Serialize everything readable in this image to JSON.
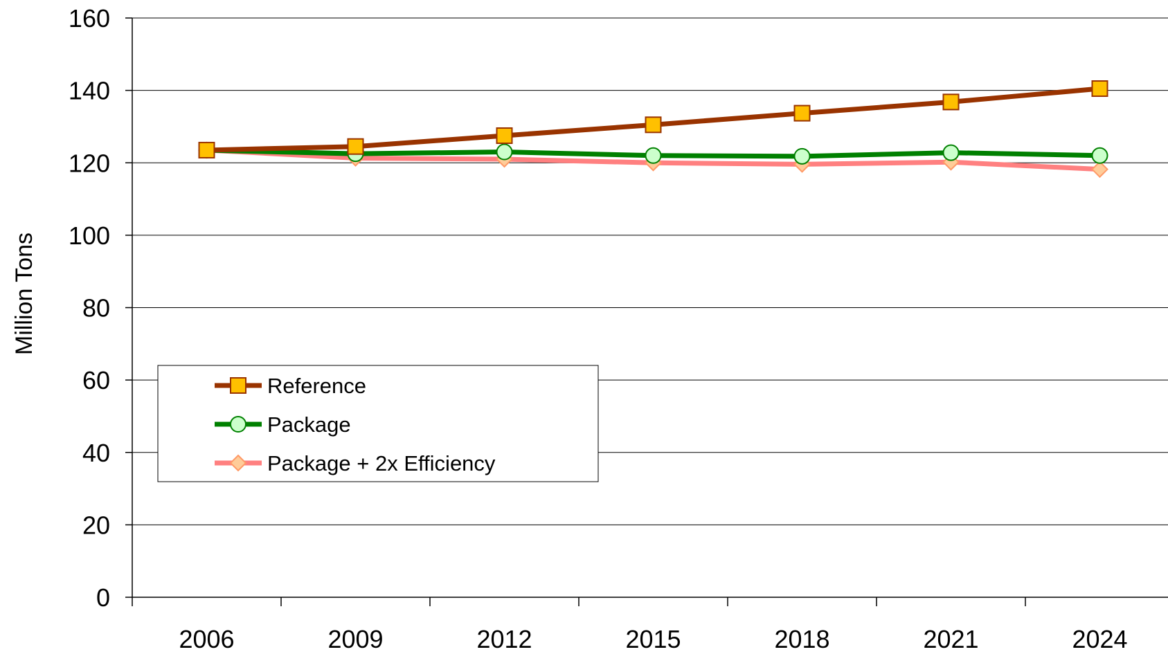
{
  "chart_data": {
    "type": "line",
    "title": "",
    "xlabel": "",
    "ylabel": "Million Tons",
    "ylim": [
      0,
      160
    ],
    "yticks": [
      0,
      20,
      40,
      60,
      80,
      100,
      120,
      140,
      160
    ],
    "categories": [
      "2006",
      "2009",
      "2012",
      "2015",
      "2018",
      "2021",
      "2024"
    ],
    "grid": "horizontal",
    "legend_position": "center-left",
    "series": [
      {
        "name": "Reference",
        "values": [
          123.5,
          124.5,
          127.5,
          130.5,
          133.7,
          136.8,
          140.5
        ],
        "color": "#993300",
        "marker": "square",
        "marker_fill": "#FFC000"
      },
      {
        "name": "Package",
        "values": [
          123.5,
          122.5,
          123.0,
          122.0,
          121.8,
          122.8,
          122.0
        ],
        "color": "#008000",
        "marker": "circle",
        "marker_fill": "#CCFFCC"
      },
      {
        "name": "Package + 2x Efficiency",
        "values": [
          123.5,
          121.3,
          121.0,
          120.0,
          119.6,
          120.2,
          118.2
        ],
        "color": "#FF8080",
        "marker": "diamond",
        "marker_fill": "#FFCC99"
      }
    ]
  }
}
